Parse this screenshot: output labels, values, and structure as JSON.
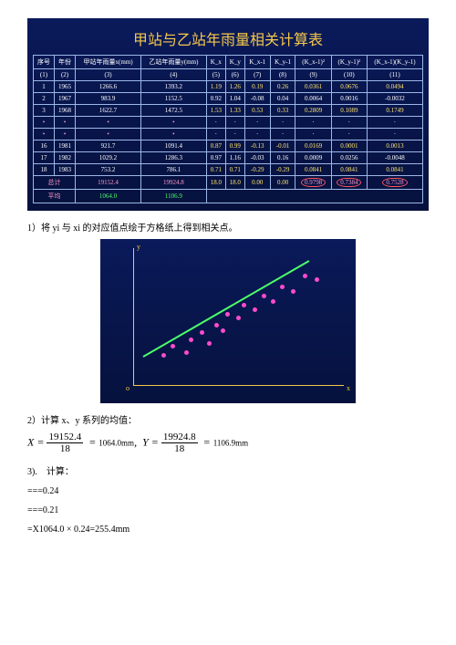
{
  "table": {
    "title": "甲站与乙站年雨量相关计算表",
    "headers": [
      "序号",
      "年份",
      "甲站年雨量x(mm)",
      "乙站年雨量y(mm)",
      "K_x",
      "K_y",
      "K_x-1",
      "K_y-1",
      "(K_x-1)²",
      "(K_y-1)²",
      "(K_x-1)(K_y-1)"
    ],
    "hdr_row2": [
      "(1)",
      "(2)",
      "(3)",
      "(4)",
      "(5)",
      "(6)",
      "(7)",
      "(8)",
      "(9)",
      "(10)",
      "(11)"
    ],
    "rows": [
      {
        "i": "1",
        "yr": "1965",
        "x": "1266.6",
        "y": "1393.2",
        "kx": "1.19",
        "ky": "1.26",
        "kx1": "0.19",
        "ky1": "0.26",
        "kx12": "0.0361",
        "ky12": "0.0676",
        "prod": "0.0494",
        "cls": "yel"
      },
      {
        "i": "2",
        "yr": "1967",
        "x": "983.9",
        "y": "1152.5",
        "kx": "0.92",
        "ky": "1.04",
        "kx1": "-0.08",
        "ky1": "0.04",
        "kx12": "0.0064",
        "ky12": "0.0016",
        "prod": "-0.0032",
        "cls": ""
      },
      {
        "i": "3",
        "yr": "1968",
        "x": "1622.7",
        "y": "1472.5",
        "kx": "1.53",
        "ky": "1.33",
        "kx1": "0.53",
        "ky1": "0.33",
        "kx12": "0.2809",
        "ky12": "0.1089",
        "prod": "0.1749",
        "cls": "yel"
      }
    ],
    "rows2": [
      {
        "i": "16",
        "yr": "1981",
        "x": "921.7",
        "y": "1091.4",
        "kx": "0.87",
        "ky": "0.99",
        "kx1": "-0.13",
        "ky1": "-0.01",
        "kx12": "0.0169",
        "ky12": "0.0001",
        "prod": "0.0013",
        "cls": "yel"
      },
      {
        "i": "17",
        "yr": "1982",
        "x": "1029.2",
        "y": "1286.3",
        "kx": "0.97",
        "ky": "1.16",
        "kx1": "-0.03",
        "ky1": "0.16",
        "kx12": "0.0009",
        "ky12": "0.0256",
        "prod": "-0.0048",
        "cls": ""
      },
      {
        "i": "18",
        "yr": "1983",
        "x": "753.2",
        "y": "786.1",
        "kx": "0.71",
        "ky": "0.71",
        "kx1": "-0.29",
        "ky1": "-0.29",
        "kx12": "0.0841",
        "ky12": "0.0841",
        "prod": "0.0841",
        "cls": "yel"
      }
    ],
    "sum": {
      "lbl": "总计",
      "x": "19152.4",
      "y": "19924.8",
      "kx": "18.0",
      "ky": "18.0",
      "kx1": "0.00",
      "ky1": "0.00",
      "s1": "0.9798",
      "s2": "0.7384",
      "s3": "0.7528"
    },
    "avg": {
      "lbl": "平均",
      "x": "1064.0",
      "y": "1106.9"
    }
  },
  "step1": "1）将 yi 与 xi 的对应值点绘于方格纸上得到相关点。",
  "scatter": {
    "points": [
      [
        30,
        115
      ],
      [
        40,
        105
      ],
      [
        55,
        112
      ],
      [
        60,
        98
      ],
      [
        72,
        90
      ],
      [
        80,
        102
      ],
      [
        88,
        82
      ],
      [
        95,
        88
      ],
      [
        100,
        70
      ],
      [
        112,
        74
      ],
      [
        118,
        60
      ],
      [
        130,
        65
      ],
      [
        140,
        50
      ],
      [
        150,
        56
      ],
      [
        160,
        40
      ],
      [
        172,
        45
      ],
      [
        185,
        28
      ],
      [
        198,
        32
      ]
    ]
  },
  "step2": "2）计算 x、y 系列的均值：",
  "eqn": {
    "xnum": "19152.4",
    "xden": "18",
    "xres": "1064.0mm",
    "ynum": "19924.8",
    "yden": "18",
    "yres": "1106.9mm"
  },
  "step3": "3).　计算：",
  "calc1": "===0.24",
  "calc2": "===0.21",
  "calc3": "=X1064.0 × 0.24=255.4mm"
}
